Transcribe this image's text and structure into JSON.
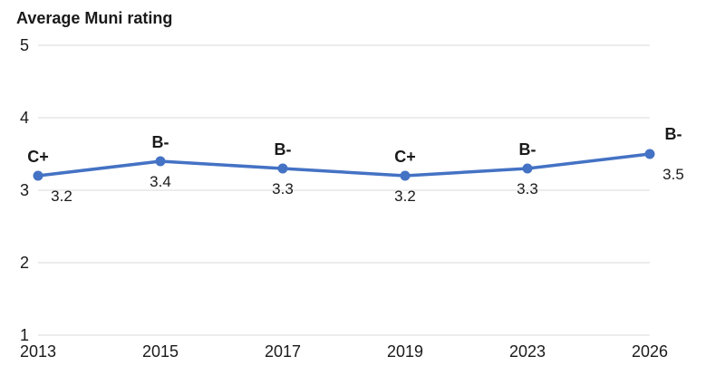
{
  "chart_data": {
    "type": "line",
    "title": "Average Muni rating",
    "xlabel": "",
    "ylabel": "",
    "categories": [
      "2013",
      "2015",
      "2017",
      "2019",
      "2023",
      "2026"
    ],
    "series": [
      {
        "values": [
          3.2,
          3.4,
          3.3,
          3.2,
          3.3,
          3.5
        ],
        "value_labels": [
          "3.2",
          "3.4",
          "3.3",
          "3.2",
          "3.3",
          "3.5"
        ],
        "grades": [
          "C+",
          "B-",
          "B-",
          "C+",
          "B-",
          "B-"
        ]
      }
    ],
    "ylim": [
      1,
      5
    ],
    "yticks": [
      "1",
      "2",
      "3",
      "4",
      "5"
    ],
    "grid": true,
    "legend": "none",
    "line_color": "#4472c4",
    "grid_color": "#d9d9d9"
  }
}
